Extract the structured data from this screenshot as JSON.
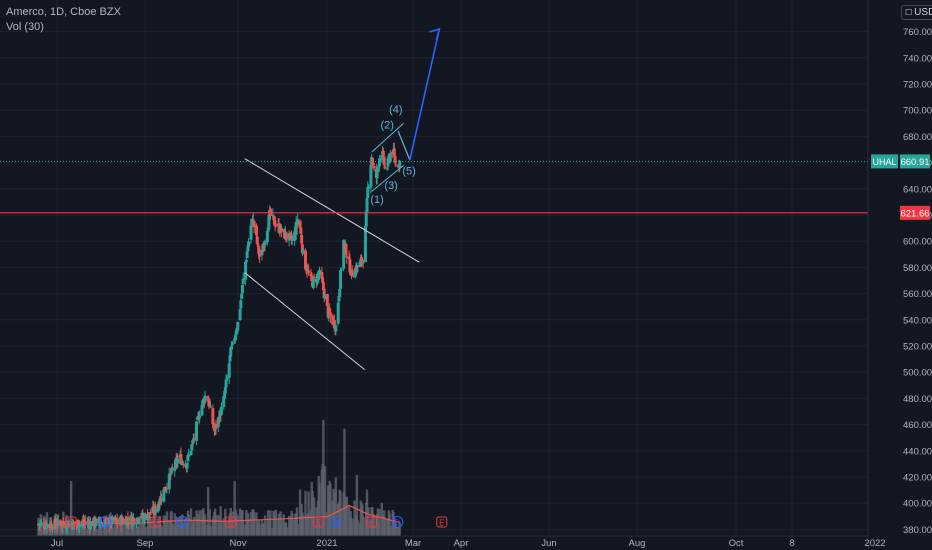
{
  "legend": {
    "symbol": "Amerco, 1D, Cboe BZX",
    "volume": "Vol (30)"
  },
  "currency": "USD",
  "colors": {
    "background": "#131722",
    "grid": "#1e222d",
    "axis_text": "#b2b5be",
    "up": "#26a69a",
    "down": "#ef5350",
    "volume": "#5d606b",
    "volume_ma": "#ef5350",
    "resistance": "#f23645",
    "channel": "#d1d4dc",
    "wave": "#5fb4d6",
    "projection": "#2962ff",
    "last_tag": "#26a69a",
    "level_tag": "#f23645",
    "event_earnings": "#f23645",
    "event_dividend": "#2962ff"
  },
  "chart_data": {
    "type": "candlestick",
    "symbol": "UHAL",
    "exchange": "Cboe BZX",
    "interval": "1D",
    "y_ticks": [
      380,
      400,
      420,
      440,
      460,
      480,
      500,
      520,
      540,
      560,
      580,
      600,
      620,
      640,
      660,
      680,
      700,
      720,
      740,
      760
    ],
    "ylim": [
      375,
      778
    ],
    "x_ticks": [
      "Jul",
      "Sep",
      "Nov",
      "2021",
      "Mar",
      "Apr",
      "Jun",
      "Aug",
      "Oct",
      "8",
      "2022"
    ],
    "last_price": {
      "symbol": "UHAL",
      "value": 660.91
    },
    "resistance_level": 621.66,
    "price_path": [
      [
        "2020-07-15",
        384
      ],
      [
        "2020-09-15",
        386
      ],
      [
        "2020-10-25",
        390
      ],
      [
        "2020-11-05",
        395
      ],
      [
        "2020-11-20",
        415
      ],
      [
        "2020-12-05",
        435
      ],
      [
        "2020-12-15",
        430
      ],
      [
        "2020-12-25",
        450
      ],
      [
        "2021-01-01",
        470
      ],
      [
        "2021-01-10",
        485
      ],
      [
        "2021-01-20",
        455
      ],
      [
        "2021-01-31",
        475
      ],
      [
        "2021-02-10",
        515
      ],
      [
        "2021-02-20",
        540
      ],
      [
        "2021-02-28",
        580
      ],
      [
        "2021-03-05",
        600
      ],
      [
        "2021-03-10",
        618
      ],
      [
        "2021-03-20",
        585
      ],
      [
        "2021-04-01",
        620
      ],
      [
        "2021-04-10",
        612
      ],
      [
        "2021-04-20",
        605
      ],
      [
        "2021-05-01",
        600
      ],
      [
        "2021-05-08",
        620
      ],
      [
        "2021-05-15",
        585
      ],
      [
        "2021-05-25",
        568
      ],
      [
        "2021-06-05",
        575
      ],
      [
        "2021-06-15",
        545
      ],
      [
        "2021-06-25",
        535
      ],
      [
        "2021-07-05",
        600
      ],
      [
        "2021-07-15",
        575
      ],
      [
        "2021-07-25",
        582
      ],
      [
        "2021-07-31",
        588
      ],
      [
        "2021-08-05",
        640
      ],
      [
        "2021-08-10",
        665
      ],
      [
        "2021-08-15",
        645
      ],
      [
        "2021-08-22",
        672
      ],
      [
        "2021-08-28",
        652
      ],
      [
        "2021-09-05",
        672
      ],
      [
        "2021-09-10",
        658
      ],
      [
        "2021-09-15",
        661
      ]
    ],
    "volume_path": [
      [
        "2020-07-01",
        18
      ],
      [
        "2020-09-01",
        14
      ],
      [
        "2020-11-01",
        16
      ],
      [
        "2021-01-01",
        22
      ],
      [
        "2021-03-10",
        20
      ],
      [
        "2021-05-01",
        18
      ],
      [
        "2021-06-08",
        55
      ],
      [
        "2021-07-10",
        28
      ],
      [
        "2021-08-05",
        30
      ],
      [
        "2021-09-15",
        16
      ]
    ],
    "volume_spikes": [
      [
        "2020-07-20",
        45
      ],
      [
        "2021-01-12",
        40
      ],
      [
        "2021-02-15",
        45
      ],
      [
        "2021-05-10",
        38
      ],
      [
        "2021-06-09",
        95
      ],
      [
        "2021-06-25",
        48
      ],
      [
        "2021-07-06",
        88
      ],
      [
        "2021-07-22",
        50
      ],
      [
        "2021-08-04",
        38
      ]
    ],
    "volume_ma": [
      [
        "2020-07-01",
        12
      ],
      [
        "2020-10-01",
        10
      ],
      [
        "2020-12-15",
        13
      ],
      [
        "2021-02-01",
        12
      ],
      [
        "2021-04-15",
        14
      ],
      [
        "2021-06-15",
        16
      ],
      [
        "2021-07-12",
        25
      ],
      [
        "2021-08-05",
        18
      ],
      [
        "2021-09-15",
        11
      ]
    ],
    "annotations": {
      "channel": [
        [
          [
            "2021-02-28",
            663
          ],
          [
            "2021-10-10",
            584
          ]
        ],
        [
          [
            "2021-02-28",
            576
          ],
          [
            "2021-08-01",
            502
          ]
        ]
      ],
      "wedge": [
        [
          [
            "2021-08-10",
            668
          ],
          [
            "2021-09-20",
            690
          ]
        ],
        [
          [
            "2021-08-10",
            638
          ],
          [
            "2021-09-20",
            658
          ]
        ]
      ],
      "wave_path": [
        [
          "2021-09-13",
          684
        ],
        [
          "2021-09-28",
          662
        ]
      ],
      "projection": [
        [
          "2021-09-28",
          662
        ],
        [
          "2021-11-05",
          762
        ]
      ],
      "wave_labels": [
        {
          "label": "(1)",
          "date": "2021-08-17",
          "price": 629
        },
        {
          "label": "(2)",
          "date": "2021-08-30",
          "price": 686
        },
        {
          "label": "(3)",
          "date": "2021-09-04",
          "price": 640
        },
        {
          "label": "(4)",
          "date": "2021-09-10",
          "price": 698
        },
        {
          "label": "(5)",
          "date": "2021-09-27",
          "price": 651
        }
      ]
    },
    "events": [
      {
        "type": "E",
        "date": "2020-07-20"
      },
      {
        "type": "D",
        "date": "2020-09-02"
      },
      {
        "type": "E",
        "date": "2020-11-05"
      },
      {
        "type": "D",
        "date": "2020-12-10"
      },
      {
        "type": "E",
        "date": "2021-02-10"
      },
      {
        "type": "E",
        "date": "2021-06-03"
      },
      {
        "type": "D",
        "date": "2021-06-25"
      },
      {
        "type": "E",
        "date": "2021-08-10"
      },
      {
        "type": "D",
        "date": "2021-09-12"
      },
      {
        "type": "E",
        "date": "2021-11-08"
      }
    ]
  }
}
